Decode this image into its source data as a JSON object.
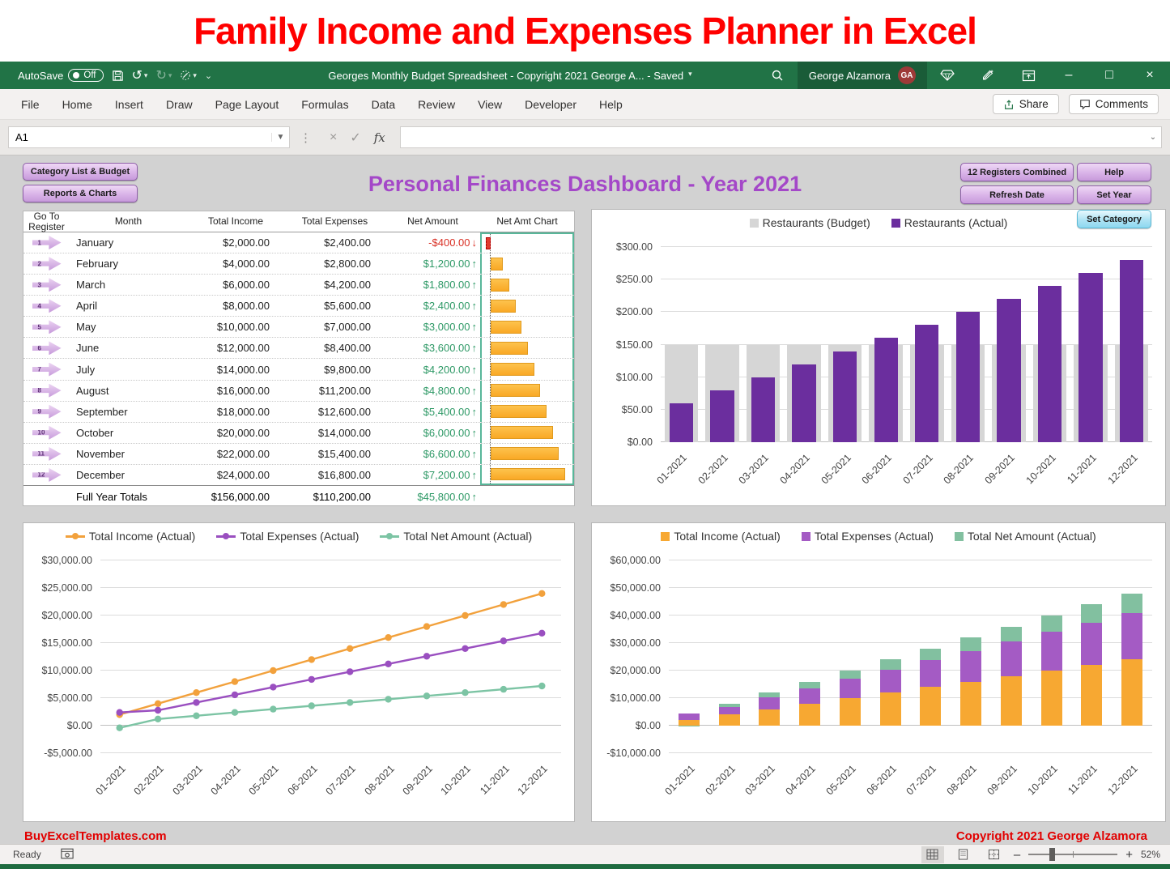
{
  "banner": {
    "title": "Family Income and Expenses Planner in Excel"
  },
  "titlebar": {
    "autosave_label": "AutoSave",
    "autosave_state": "Off",
    "doc_title": "Georges Monthly Budget Spreadsheet - Copyright 2021 George A...  -  Saved",
    "user_name": "George Alzamora",
    "user_initials": "GA"
  },
  "menu": {
    "tabs": [
      "File",
      "Home",
      "Insert",
      "Draw",
      "Page Layout",
      "Formulas",
      "Data",
      "Review",
      "View",
      "Developer",
      "Help"
    ],
    "share_label": "Share",
    "comments_label": "Comments"
  },
  "formula_bar": {
    "name_box": "A1",
    "fx_label": "fx",
    "formula_value": ""
  },
  "dashboard": {
    "title": "Personal Finances Dashboard - Year 2021",
    "buttons_left": [
      "Category List & Budget",
      "Reports & Charts"
    ],
    "buttons_right": [
      "12 Registers Combined",
      "Help",
      "Refresh Date",
      "Set Year"
    ],
    "set_category_label": "Set Category",
    "footer_left": "BuyExcelTemplates.com",
    "footer_right": "Copyright 2021  George Alzamora"
  },
  "table": {
    "headers": [
      "Go To\nRegister",
      "Month",
      "Total Income",
      "Total Expenses",
      "Net Amount",
      "Net Amt Chart"
    ],
    "rows": [
      {
        "num": "1",
        "month": "January",
        "income": "$2,000.00",
        "expenses": "$2,400.00",
        "net": "-$400.00",
        "net_value": -400
      },
      {
        "num": "2",
        "month": "February",
        "income": "$4,000.00",
        "expenses": "$2,800.00",
        "net": "$1,200.00",
        "net_value": 1200
      },
      {
        "num": "3",
        "month": "March",
        "income": "$6,000.00",
        "expenses": "$4,200.00",
        "net": "$1,800.00",
        "net_value": 1800
      },
      {
        "num": "4",
        "month": "April",
        "income": "$8,000.00",
        "expenses": "$5,600.00",
        "net": "$2,400.00",
        "net_value": 2400
      },
      {
        "num": "5",
        "month": "May",
        "income": "$10,000.00",
        "expenses": "$7,000.00",
        "net": "$3,000.00",
        "net_value": 3000
      },
      {
        "num": "6",
        "month": "June",
        "income": "$12,000.00",
        "expenses": "$8,400.00",
        "net": "$3,600.00",
        "net_value": 3600
      },
      {
        "num": "7",
        "month": "July",
        "income": "$14,000.00",
        "expenses": "$9,800.00",
        "net": "$4,200.00",
        "net_value": 4200
      },
      {
        "num": "8",
        "month": "August",
        "income": "$16,000.00",
        "expenses": "$11,200.00",
        "net": "$4,800.00",
        "net_value": 4800
      },
      {
        "num": "9",
        "month": "September",
        "income": "$18,000.00",
        "expenses": "$12,600.00",
        "net": "$5,400.00",
        "net_value": 5400
      },
      {
        "num": "10",
        "month": "October",
        "income": "$20,000.00",
        "expenses": "$14,000.00",
        "net": "$6,000.00",
        "net_value": 6000
      },
      {
        "num": "11",
        "month": "November",
        "income": "$22,000.00",
        "expenses": "$15,400.00",
        "net": "$6,600.00",
        "net_value": 6600
      },
      {
        "num": "12",
        "month": "December",
        "income": "$24,000.00",
        "expenses": "$16,800.00",
        "net": "$7,200.00",
        "net_value": 7200
      }
    ],
    "totals": {
      "label": "Full Year Totals",
      "income": "$156,000.00",
      "expenses": "$110,200.00",
      "net": "$45,800.00"
    }
  },
  "chart_data": [
    {
      "type": "bar",
      "subtype": "overlap",
      "categories": [
        "01-2021",
        "02-2021",
        "03-2021",
        "04-2021",
        "05-2021",
        "06-2021",
        "07-2021",
        "08-2021",
        "09-2021",
        "10-2021",
        "11-2021",
        "12-2021"
      ],
      "series": [
        {
          "name": "Restaurants (Budget)",
          "color": "#D6D6D6",
          "values": [
            150,
            150,
            150,
            150,
            150,
            150,
            150,
            150,
            150,
            150,
            150,
            150
          ]
        },
        {
          "name": "Restaurants (Actual)",
          "color": "#6B2E9E",
          "values": [
            60,
            80,
            100,
            120,
            140,
            160,
            180,
            200,
            220,
            240,
            260,
            280
          ]
        }
      ],
      "ylim": [
        0,
        300
      ],
      "yticks": [
        {
          "label": "$0.00",
          "v": 0
        },
        {
          "label": "$50.00",
          "v": 50
        },
        {
          "label": "$100.00",
          "v": 100
        },
        {
          "label": "$150.00",
          "v": 150
        },
        {
          "label": "$200.00",
          "v": 200
        },
        {
          "label": "$250.00",
          "v": 250
        },
        {
          "label": "$300.00",
          "v": 300
        }
      ],
      "legend_position": "top",
      "grid": true
    },
    {
      "type": "line",
      "categories": [
        "01-2021",
        "02-2021",
        "03-2021",
        "04-2021",
        "05-2021",
        "06-2021",
        "07-2021",
        "08-2021",
        "09-2021",
        "10-2021",
        "11-2021",
        "12-2021"
      ],
      "series": [
        {
          "name": "Total Income (Actual)",
          "color": "#F2A13C",
          "values": [
            2000,
            4000,
            6000,
            8000,
            10000,
            12000,
            14000,
            16000,
            18000,
            20000,
            22000,
            24000
          ]
        },
        {
          "name": "Total Expenses (Actual)",
          "color": "#9A4FC0",
          "values": [
            2400,
            2800,
            4200,
            5600,
            7000,
            8400,
            9800,
            11200,
            12600,
            14000,
            15400,
            16800
          ]
        },
        {
          "name": "Total Net Amount (Actual)",
          "color": "#7CC4A4",
          "values": [
            -400,
            1200,
            1800,
            2400,
            3000,
            3600,
            4200,
            4800,
            5400,
            6000,
            6600,
            7200
          ]
        }
      ],
      "ylim": [
        -5000,
        30000
      ],
      "yticks": [
        {
          "label": "-$5,000.00",
          "v": -5000
        },
        {
          "label": "$0.00",
          "v": 0
        },
        {
          "label": "$5,000.00",
          "v": 5000
        },
        {
          "label": "$10,000.00",
          "v": 10000
        },
        {
          "label": "$15,000.00",
          "v": 15000
        },
        {
          "label": "$20,000.00",
          "v": 20000
        },
        {
          "label": "$25,000.00",
          "v": 25000
        },
        {
          "label": "$30,000.00",
          "v": 30000
        }
      ],
      "legend_position": "top",
      "grid": true
    },
    {
      "type": "bar",
      "subtype": "stacked",
      "categories": [
        "01-2021",
        "02-2021",
        "03-2021",
        "04-2021",
        "05-2021",
        "06-2021",
        "07-2021",
        "08-2021",
        "09-2021",
        "10-2021",
        "11-2021",
        "12-2021"
      ],
      "series": [
        {
          "name": "Total Income (Actual)",
          "color": "#F7A832",
          "values": [
            2000,
            4000,
            6000,
            8000,
            10000,
            12000,
            14000,
            16000,
            18000,
            20000,
            22000,
            24000
          ]
        },
        {
          "name": "Total Expenses (Actual)",
          "color": "#A45BC4",
          "values": [
            2400,
            2800,
            4200,
            5600,
            7000,
            8400,
            9800,
            11200,
            12600,
            14000,
            15400,
            16800
          ]
        },
        {
          "name": "Total Net Amount (Actual)",
          "color": "#82C0A0",
          "values": [
            -400,
            1200,
            1800,
            2400,
            3000,
            3600,
            4200,
            4800,
            5400,
            6000,
            6600,
            7200
          ]
        }
      ],
      "ylim": [
        -10000,
        60000
      ],
      "yticks": [
        {
          "label": "-$10,000.00",
          "v": -10000
        },
        {
          "label": "$0.00",
          "v": 0
        },
        {
          "label": "$10,000.00",
          "v": 10000
        },
        {
          "label": "$20,000.00",
          "v": 20000
        },
        {
          "label": "$30,000.00",
          "v": 30000
        },
        {
          "label": "$40,000.00",
          "v": 40000
        },
        {
          "label": "$50,000.00",
          "v": 50000
        },
        {
          "label": "$60,000.00",
          "v": 60000
        }
      ],
      "legend_position": "top",
      "grid": true
    }
  ],
  "status_bar": {
    "ready_label": "Ready",
    "zoom_label": "52%"
  }
}
